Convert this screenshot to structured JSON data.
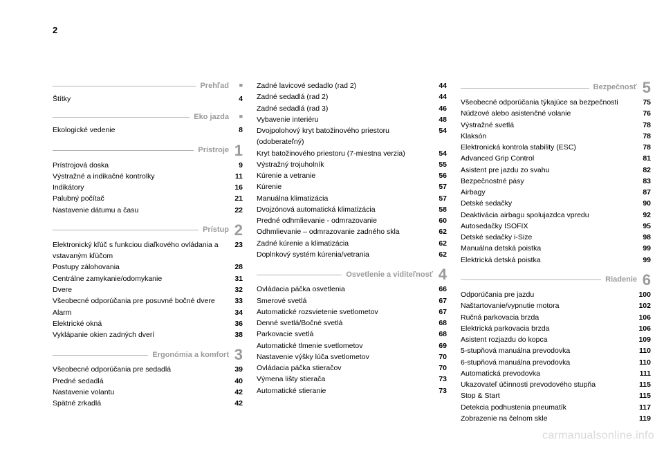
{
  "pageNumber": "2",
  "watermark": "carmanualsonline.info",
  "columns": [
    {
      "sections": [
        {
          "title": "Prehľad",
          "badge": "■",
          "badgeType": "square",
          "entries": [
            {
              "label": "Štítky",
              "page": "4"
            }
          ]
        },
        {
          "title": "Eko jazda",
          "badge": "■",
          "badgeType": "square",
          "entries": [
            {
              "label": "Ekologické vedenie",
              "page": "8"
            }
          ]
        },
        {
          "title": "Prístroje",
          "badge": "1",
          "badgeType": "num",
          "entries": [
            {
              "label": "Prístrojová doska",
              "page": "9"
            },
            {
              "label": "Výstražné a indikačné kontrolky",
              "page": "11"
            },
            {
              "label": "Indikátory",
              "page": "16"
            },
            {
              "label": "Palubný počítač",
              "page": "21"
            },
            {
              "label": "Nastavenie dátumu a času",
              "page": "22"
            }
          ]
        },
        {
          "title": "Prístup",
          "badge": "2",
          "badgeType": "num",
          "entries": [
            {
              "label": "Elektronický kľúč s funkciou diaľkového ovládania a vstavaným kľúčom",
              "page": "23"
            },
            {
              "label": "Postupy zálohovania",
              "page": "28"
            },
            {
              "label": "Centrálne zamykanie/odomykanie",
              "page": "31"
            },
            {
              "label": "Dvere",
              "page": "32"
            },
            {
              "label": "Všeobecné odporúčania pre posuvné bočné dvere",
              "page": "33"
            },
            {
              "label": "Alarm",
              "page": "34"
            },
            {
              "label": "Elektrické okná",
              "page": "36"
            },
            {
              "label": "Vyklápanie okien zadných dverí",
              "page": "38"
            }
          ]
        },
        {
          "title": "Ergonómia a komfort",
          "badge": "3",
          "badgeType": "num",
          "entries": [
            {
              "label": "Všeobecné odporúčania pre sedadlá",
              "page": "39"
            },
            {
              "label": "Predné sedadlá",
              "page": "40"
            },
            {
              "label": "Nastavenie volantu",
              "page": "42"
            },
            {
              "label": "Spätné zrkadlá",
              "page": "42"
            }
          ]
        }
      ]
    },
    {
      "sections": [
        {
          "title": "",
          "badge": "",
          "noHeader": true,
          "entries": [
            {
              "label": "Zadné lavicové sedadlo (rad 2)",
              "page": "44"
            },
            {
              "label": "Zadné sedadlá (rad 2)",
              "page": "44"
            },
            {
              "label": "Zadné sedadlá (rad 3)",
              "page": "46"
            },
            {
              "label": "Vybavenie interiéru",
              "page": "48"
            },
            {
              "label": "Dvojpolohový kryt batožinového priestoru (odoberateľný)",
              "page": "54"
            },
            {
              "label": "Kryt batožinového priestoru (7-miestna verzia)",
              "page": "54"
            },
            {
              "label": "Výstražný trojuholník",
              "page": "55"
            },
            {
              "label": "Kúrenie a vetranie",
              "page": "56"
            },
            {
              "label": "Kúrenie",
              "page": "57"
            },
            {
              "label": "Manuálna klimatizácia",
              "page": "57"
            },
            {
              "label": "Dvojzónová automatická klimatizácia",
              "page": "58"
            },
            {
              "label": "Predné odhmlievanie - odmrazovanie",
              "page": "60"
            },
            {
              "label": "Odhmlievanie – odmrazovanie zadného skla",
              "page": "62"
            },
            {
              "label": "Zadné kúrenie a klimatizácia",
              "page": "62"
            },
            {
              "label": "Doplnkový systém kúrenia/vetrania",
              "page": "62"
            }
          ]
        },
        {
          "title": "Osvetlenie a viditeľnosť",
          "badge": "4",
          "badgeType": "num",
          "entries": [
            {
              "label": "Ovládacia páčka osvetlenia",
              "page": "66"
            },
            {
              "label": "Smerové svetlá",
              "page": "67"
            },
            {
              "label": "Automatické rozsvietenie svetlometov",
              "page": "67"
            },
            {
              "label": "Denné svetlá/Bočné svetlá",
              "page": "68"
            },
            {
              "label": "Parkovacie svetlá",
              "page": "68"
            },
            {
              "label": "Automatické tlmenie svetlometov",
              "page": "69"
            },
            {
              "label": "Nastavenie výšky lúča svetlometov",
              "page": "70"
            },
            {
              "label": "Ovládacia páčka stieračov",
              "page": "70"
            },
            {
              "label": "Výmena lišty stierača",
              "page": "73"
            },
            {
              "label": "Automatické stieranie",
              "page": "73"
            }
          ]
        }
      ]
    },
    {
      "sections": [
        {
          "title": "Bezpečnosť",
          "badge": "5",
          "badgeType": "num",
          "entries": [
            {
              "label": "Všeobecné odporúčania týkajúce sa bezpečnosti",
              "page": "75"
            },
            {
              "label": "Núdzové alebo asistenčné volanie",
              "page": "76"
            },
            {
              "label": "Výstražné svetlá",
              "page": "78"
            },
            {
              "label": "Klaksón",
              "page": "78"
            },
            {
              "label": "Elektronická kontrola stability (ESC)",
              "page": "78"
            },
            {
              "label": "Advanced Grip Control",
              "page": "81"
            },
            {
              "label": "Asistent pre jazdu zo svahu",
              "page": "82"
            },
            {
              "label": "Bezpečnostné pásy",
              "page": "83"
            },
            {
              "label": "Airbagy",
              "page": "87"
            },
            {
              "label": "Detské sedačky",
              "page": "90"
            },
            {
              "label": "Deaktivácia airbagu spolujazdca vpredu",
              "page": "92"
            },
            {
              "label": "Autosedačky ISOFIX",
              "page": "95"
            },
            {
              "label": "Detské sedačky i-Size",
              "page": "98"
            },
            {
              "label": "Manuálna detská poistka",
              "page": "99"
            },
            {
              "label": "Elektrická detská poistka",
              "page": "99"
            }
          ]
        },
        {
          "title": "Riadenie",
          "badge": "6",
          "badgeType": "num",
          "entries": [
            {
              "label": "Odporúčania pre jazdu",
              "page": "100"
            },
            {
              "label": "Naštartovanie/vypnutie motora",
              "page": "102"
            },
            {
              "label": "Ručná parkovacia brzda",
              "page": "106"
            },
            {
              "label": "Elektrická parkovacia brzda",
              "page": "106"
            },
            {
              "label": "Asistent rozjazdu do kopca",
              "page": "109"
            },
            {
              "label": "5-stupňová manuálna prevodovka",
              "page": "110"
            },
            {
              "label": "6-stupňová manuálna prevodovka",
              "page": "110"
            },
            {
              "label": "Automatická prevodovka",
              "page": "111"
            },
            {
              "label": "Ukazovateľ účinnosti prevodového stupňa",
              "page": "115"
            },
            {
              "label": "Stop & Start",
              "page": "115"
            },
            {
              "label": "Detekcia podhustenia pneumatík",
              "page": "117"
            },
            {
              "label": "Zobrazenie na čelnom skle",
              "page": "119"
            }
          ]
        }
      ]
    }
  ]
}
